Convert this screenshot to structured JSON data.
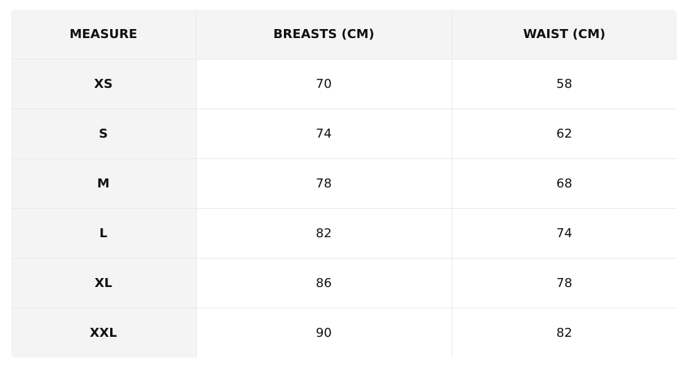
{
  "table": {
    "header": [
      "MEASURE",
      "BREASTS (CM)",
      "WAIST (CM)"
    ],
    "rows": [
      [
        "XS",
        "70",
        "58"
      ],
      [
        "S",
        "74",
        "62"
      ],
      [
        "M",
        "78",
        "68"
      ],
      [
        "L",
        "82",
        "74"
      ],
      [
        "XL",
        "86",
        "78"
      ],
      [
        "XXL",
        "90",
        "82"
      ]
    ]
  }
}
